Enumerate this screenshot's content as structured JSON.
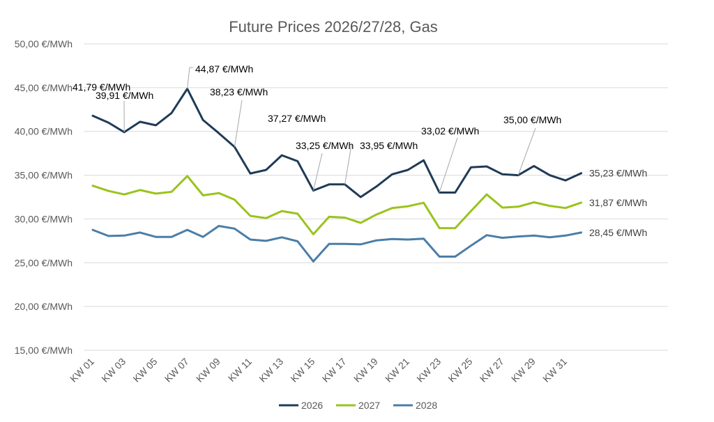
{
  "chart_data": {
    "type": "line",
    "title": "Future Prices 2026/27/28, Gas",
    "xlabel": "",
    "ylabel": "",
    "ylim": [
      15,
      50
    ],
    "yticks": [
      "15,00 €/MWh",
      "20,00 €/MWh",
      "25,00 €/MWh",
      "30,00 €/MWh",
      "35,00 €/MWh",
      "40,00 €/MWh",
      "45,00 €/MWh",
      "50,00 €/MWh"
    ],
    "ytick_values": [
      15,
      20,
      25,
      30,
      35,
      40,
      45,
      50
    ],
    "categories": [
      "KW 01",
      "KW 02",
      "KW 03",
      "KW 04",
      "KW 05",
      "KW 06",
      "KW 07",
      "KW 08",
      "KW 09",
      "KW 10",
      "KW 11",
      "KW 12",
      "KW 13",
      "KW 14",
      "KW 15",
      "KW 16",
      "KW 17",
      "KW 18",
      "KW 19",
      "KW 20",
      "KW 21",
      "KW 22",
      "KW 23",
      "KW 24",
      "KW 25",
      "KW 26",
      "KW 27",
      "KW 28",
      "KW 29",
      "KW 30",
      "KW 31",
      "KW 32"
    ],
    "xtick_labels": [
      "KW 01",
      "KW 03",
      "KW 05",
      "KW 07",
      "KW 09",
      "KW 11",
      "KW 13",
      "KW 15",
      "KW 17",
      "KW 19",
      "KW 21",
      "KW 23",
      "KW 25",
      "KW 27",
      "KW 29",
      "KW 31"
    ],
    "grid": true,
    "legend_position": "bottom",
    "series": [
      {
        "name": "2026",
        "color": "#1f3b57",
        "values": [
          41.79,
          41.0,
          39.91,
          41.1,
          40.7,
          42.1,
          44.87,
          41.3,
          39.8,
          38.23,
          35.2,
          35.6,
          37.27,
          36.6,
          33.25,
          33.95,
          33.95,
          32.5,
          33.7,
          35.1,
          35.6,
          36.7,
          33.02,
          33.02,
          35.9,
          36.0,
          35.1,
          35.0,
          36.05,
          35.0,
          34.4,
          35.23
        ]
      },
      {
        "name": "2027",
        "color": "#9ac31c",
        "values": [
          33.8,
          33.2,
          32.8,
          33.3,
          32.9,
          33.1,
          34.9,
          32.7,
          32.95,
          32.2,
          30.35,
          30.1,
          30.9,
          30.6,
          28.25,
          30.25,
          30.15,
          29.55,
          30.5,
          31.25,
          31.45,
          31.85,
          28.95,
          28.95,
          30.9,
          32.8,
          31.3,
          31.4,
          31.9,
          31.5,
          31.25,
          31.87
        ]
      },
      {
        "name": "2028",
        "color": "#4a7ea8",
        "values": [
          28.75,
          28.05,
          28.1,
          28.45,
          27.95,
          27.95,
          28.75,
          27.95,
          29.2,
          28.9,
          27.65,
          27.5,
          27.9,
          27.45,
          25.15,
          27.15,
          27.15,
          27.1,
          27.55,
          27.7,
          27.65,
          27.75,
          25.7,
          25.7,
          26.95,
          28.15,
          27.85,
          28.0,
          28.1,
          27.9,
          28.1,
          28.45
        ]
      }
    ],
    "annotations": [
      {
        "text": "41,79 €/MWh",
        "series": 0,
        "index": 0
      },
      {
        "text": "39,91 €/MWh",
        "series": 0,
        "index": 2
      },
      {
        "text": "44,87 €/MWh",
        "series": 0,
        "index": 6
      },
      {
        "text": "38,23 €/MWh",
        "series": 0,
        "index": 9
      },
      {
        "text": "37,27 €/MWh",
        "series": 0,
        "index": 12
      },
      {
        "text": "33,25 €/MWh",
        "series": 0,
        "index": 14
      },
      {
        "text": "33,95 €/MWh",
        "series": 0,
        "index": 16
      },
      {
        "text": "33,02 €/MWh",
        "series": 0,
        "index": 22
      },
      {
        "text": "35,00 €/MWh",
        "series": 0,
        "index": 27
      }
    ],
    "end_labels": [
      {
        "text": "35,23 €/MWh",
        "series": 0
      },
      {
        "text": "31,87 €/MWh",
        "series": 1
      },
      {
        "text": "28,45 €/MWh",
        "series": 2
      }
    ]
  }
}
